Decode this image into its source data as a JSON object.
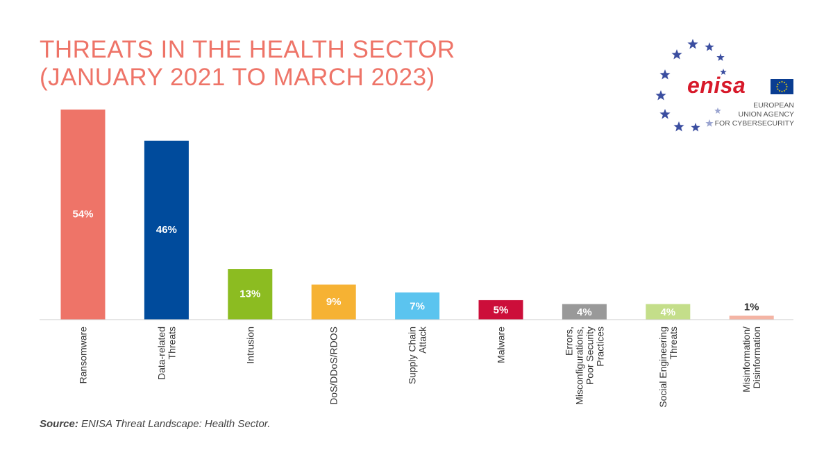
{
  "title": {
    "line1": "THREATS IN THE HEALTH SECTOR",
    "line2": "(JANUARY 2021 TO MARCH 2023)"
  },
  "source": {
    "label": "Source:",
    "text": "ENISA Threat Landscape: Health Sector."
  },
  "logo": {
    "wordmark": "enisa",
    "subtitle": [
      "EUROPEAN",
      "UNION AGENCY",
      "FOR CYBERSECURITY"
    ],
    "star_color": "#3b4ea0",
    "eu_flag_color": "#0a3d91"
  },
  "chart_data": {
    "type": "bar",
    "categories": [
      "Ransomware",
      "Data-related Threats",
      "Intrusion",
      "DoS/DDoS/RDOS",
      "Supply Chain Attack",
      "Malware",
      "Errors, Misconfigurations, Poor Security Practices",
      "Social Engineering Threats",
      "Misinformation/ Disinformation"
    ],
    "category_label_lines": [
      [
        "Ransomware"
      ],
      [
        "Data-related",
        "Threats"
      ],
      [
        "Intrusion"
      ],
      [
        "DoS/DDoS/RDOS"
      ],
      [
        "Supply Chain",
        "Attack"
      ],
      [
        "Malware"
      ],
      [
        "Errors,",
        "Misconfigurations,",
        "Poor Security",
        "Practices"
      ],
      [
        "Social Engineering",
        "Threats"
      ],
      [
        "Misinformation/",
        "Disinformation"
      ]
    ],
    "values": [
      54,
      46,
      13,
      9,
      7,
      5,
      4,
      4,
      1
    ],
    "data_labels": [
      "54%",
      "46%",
      "13%",
      "9%",
      "7%",
      "5%",
      "4%",
      "4%",
      "1%"
    ],
    "colors": [
      "#ee7468",
      "#004b9c",
      "#8cbc21",
      "#f6b233",
      "#5bc4ef",
      "#cc0e3a",
      "#999999",
      "#c4de8a",
      "#f4b4a4"
    ],
    "ylim": [
      0,
      54
    ],
    "grid": false,
    "legend": "none",
    "xlabel": "",
    "ylabel": ""
  }
}
